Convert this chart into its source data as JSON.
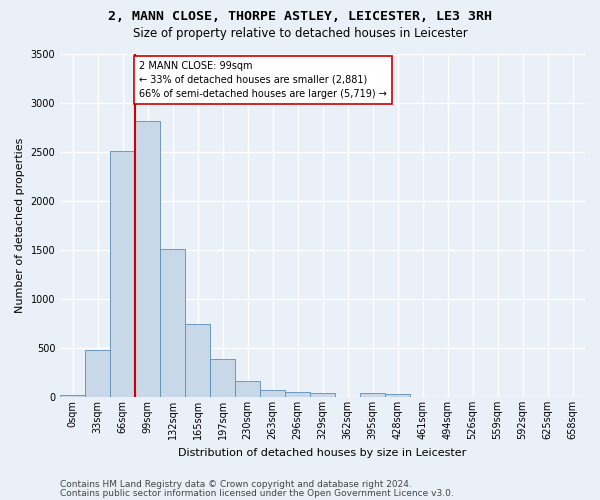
{
  "title_line1": "2, MANN CLOSE, THORPE ASTLEY, LEICESTER, LE3 3RH",
  "title_line2": "Size of property relative to detached houses in Leicester",
  "xlabel": "Distribution of detached houses by size in Leicester",
  "ylabel": "Number of detached properties",
  "bar_categories": [
    "0sqm",
    "33sqm",
    "66sqm",
    "99sqm",
    "132sqm",
    "165sqm",
    "197sqm",
    "230sqm",
    "263sqm",
    "296sqm",
    "329sqm",
    "362sqm",
    "395sqm",
    "428sqm",
    "461sqm",
    "494sqm",
    "526sqm",
    "559sqm",
    "592sqm",
    "625sqm",
    "658sqm"
  ],
  "bar_values": [
    20,
    480,
    2510,
    2820,
    1510,
    740,
    390,
    160,
    75,
    55,
    45,
    0,
    45,
    30,
    0,
    0,
    0,
    0,
    0,
    0,
    0
  ],
  "bar_color": "#c8d8e8",
  "bar_edge_color": "#5b8db8",
  "property_bin_index": 3,
  "vline_color": "#cc0000",
  "annotation_text": "2 MANN CLOSE: 99sqm\n← 33% of detached houses are smaller (2,881)\n66% of semi-detached houses are larger (5,719) →",
  "annotation_box_color": "#ffffff",
  "annotation_box_edge_color": "#cc0000",
  "ylim": [
    0,
    3500
  ],
  "yticks": [
    0,
    500,
    1000,
    1500,
    2000,
    2500,
    3000,
    3500
  ],
  "footer_line1": "Contains HM Land Registry data © Crown copyright and database right 2024.",
  "footer_line2": "Contains public sector information licensed under the Open Government Licence v3.0.",
  "background_color": "#eaf0f8",
  "plot_background_color": "#eaf0f8",
  "grid_color": "#ffffff",
  "title_fontsize": 9.5,
  "subtitle_fontsize": 8.5,
  "axis_label_fontsize": 8,
  "tick_fontsize": 7,
  "annotation_fontsize": 7,
  "footer_fontsize": 6.5
}
